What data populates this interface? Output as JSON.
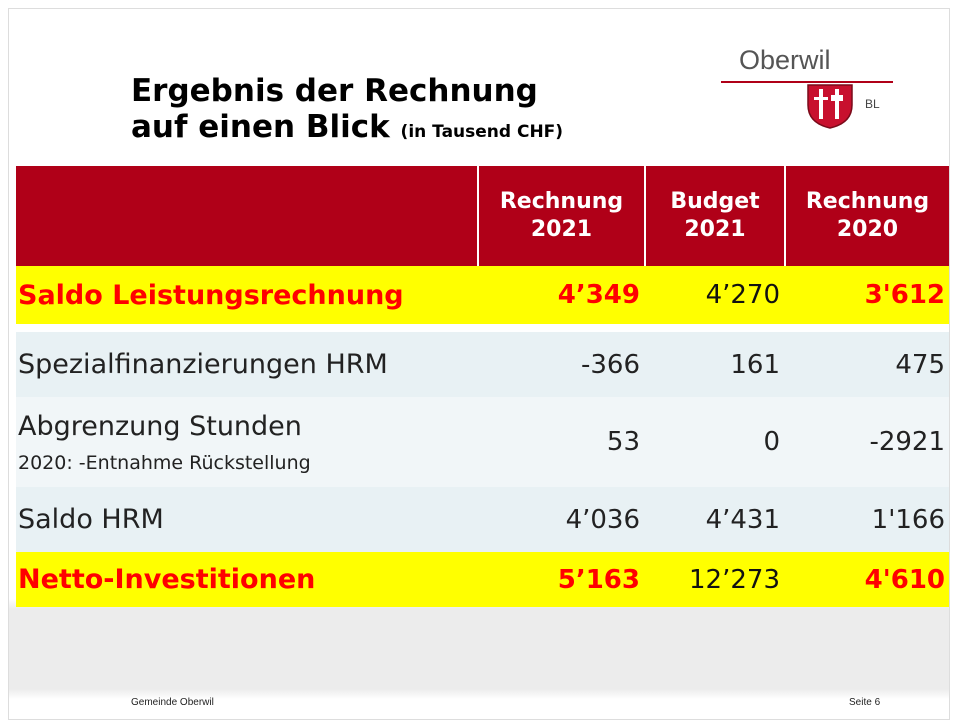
{
  "header": {
    "title_lines": [
      "Ergebnis der Rechnung",
      "auf einen Blick"
    ],
    "subtitle": "(in Tausend CHF)"
  },
  "logo": {
    "name": "Oberwil",
    "region": "BL"
  },
  "table": {
    "columns": [
      [
        "Rechnung",
        "2021"
      ],
      [
        "Budget",
        "2021"
      ],
      [
        "Rechnung",
        "2020"
      ]
    ],
    "rows": [
      {
        "label": [
          "Saldo Leistungsrechnung"
        ],
        "values": [
          "4’349",
          "4’270",
          "3'612"
        ],
        "highlight": true
      },
      {
        "label": [
          "Spezialfinanzierungen HRM"
        ],
        "values": [
          "-366",
          "161",
          "475"
        ],
        "highlight": false
      },
      {
        "label": [
          "Abgrenzung Stunden",
          "2020: -Entnahme Rückstellung"
        ],
        "values": [
          "53",
          "0",
          "-2921"
        ],
        "highlight": false
      },
      {
        "label": [
          "Saldo HRM"
        ],
        "values": [
          "4’036",
          "4’431",
          "1'166"
        ],
        "highlight": false
      },
      {
        "label": [
          "Netto-Investitionen"
        ],
        "values": [
          "5’163",
          "12’273",
          "4'610"
        ],
        "highlight": true
      }
    ]
  },
  "footer": {
    "left": "Gemeinde Oberwil",
    "right": "Seite 6"
  }
}
